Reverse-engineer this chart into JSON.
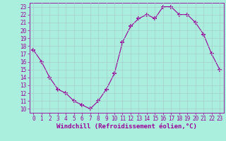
{
  "x": [
    0,
    1,
    2,
    3,
    4,
    5,
    6,
    7,
    8,
    9,
    10,
    11,
    12,
    13,
    14,
    15,
    16,
    17,
    18,
    19,
    20,
    21,
    22,
    23
  ],
  "y": [
    17.5,
    16.0,
    14.0,
    12.5,
    12.0,
    11.0,
    10.5,
    10.0,
    11.0,
    12.5,
    14.5,
    18.5,
    20.5,
    21.5,
    22.0,
    21.5,
    23.0,
    23.0,
    22.0,
    22.0,
    21.0,
    19.5,
    17.0,
    15.0
  ],
  "line_color": "#990099",
  "marker": "+",
  "marker_size": 4,
  "background_color": "#aaeedd",
  "grid_color": "#aacccc",
  "xlabel": "Windchill (Refroidissement éolien,°C)",
  "ylim": [
    9.5,
    23.5
  ],
  "xlim": [
    -0.5,
    23.5
  ],
  "yticks": [
    10,
    11,
    12,
    13,
    14,
    15,
    16,
    17,
    18,
    19,
    20,
    21,
    22,
    23
  ],
  "xticks": [
    0,
    1,
    2,
    3,
    4,
    5,
    6,
    7,
    8,
    9,
    10,
    11,
    12,
    13,
    14,
    15,
    16,
    17,
    18,
    19,
    20,
    21,
    22,
    23
  ],
  "tick_color": "#990099",
  "tick_fontsize": 5.5,
  "xlabel_fontsize": 6.5
}
